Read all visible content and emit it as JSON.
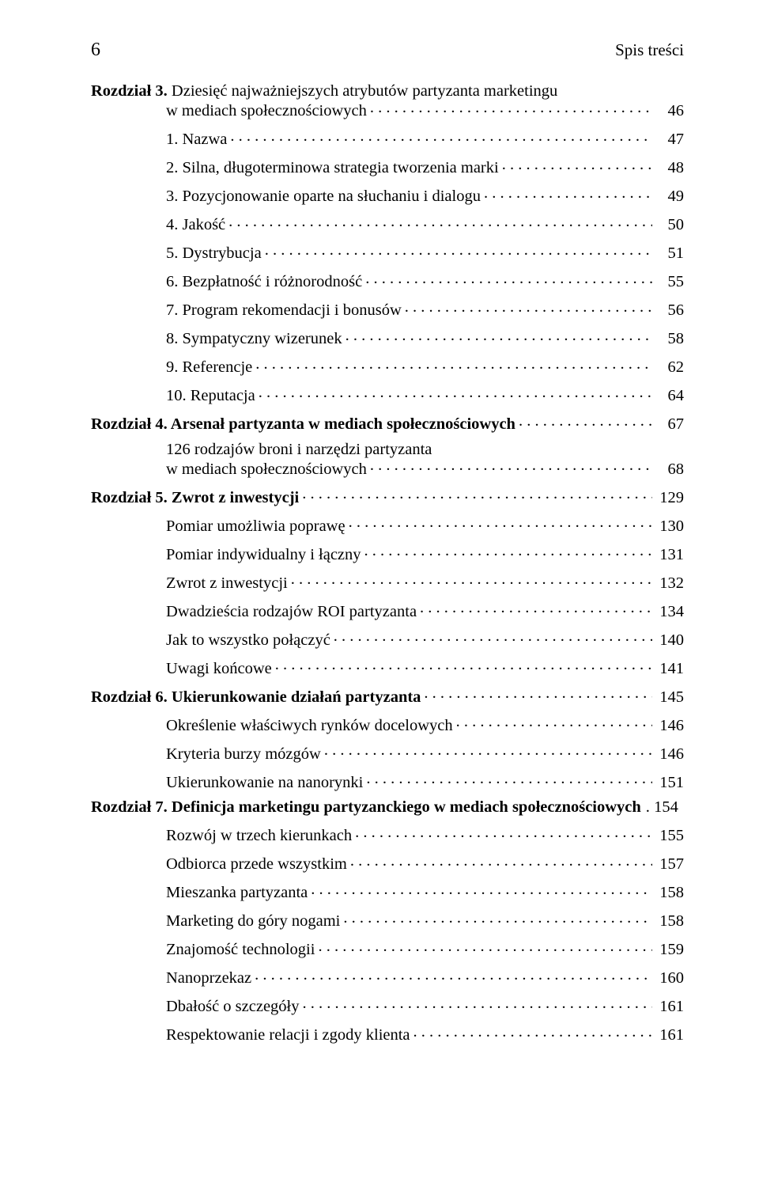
{
  "header": {
    "page_number": "6",
    "section_title": "Spis treści"
  },
  "toc": [
    {
      "level": 0,
      "bold_prefix": "Rozdział 3.",
      "text": " Dziesięć najważniejszych atrybutów partyzanta marketingu",
      "wrap": true,
      "wrap_text": "w mediach społecznościowych",
      "wrap_indent": 1,
      "page": "46",
      "extra_space": false
    },
    {
      "level": 2,
      "text": "1. Nazwa",
      "page": "47",
      "extra_space": true
    },
    {
      "level": 2,
      "text": "2. Silna, długoterminowa strategia tworzenia marki",
      "page": "48"
    },
    {
      "level": 2,
      "text": "3. Pozycjonowanie oparte na słuchaniu i dialogu",
      "page": "49"
    },
    {
      "level": 2,
      "text": "4. Jakość",
      "page": "50"
    },
    {
      "level": 2,
      "text": "5. Dystrybucja",
      "page": "51"
    },
    {
      "level": 2,
      "text": "6. Bezpłatność i różnorodność",
      "page": "55"
    },
    {
      "level": 2,
      "text": "7. Program rekomendacji i bonusów",
      "page": "56"
    },
    {
      "level": 2,
      "text": "8. Sympatyczny wizerunek",
      "page": "58"
    },
    {
      "level": 2,
      "text": "9. Referencje",
      "page": "62"
    },
    {
      "level": 2,
      "text": "10. Reputacja",
      "page": "64"
    },
    {
      "level": 0,
      "bold_prefix": "Rozdział 4.",
      "bold_rest": " Arsenał partyzanta w mediach społecznościowych",
      "page": "67",
      "extra_space": true
    },
    {
      "level": 2,
      "text": "126 rodzajów broni i narzędzi partyzanta",
      "wrap": true,
      "wrap_text": "w mediach społecznościowych",
      "wrap_indent": 2,
      "page": "68",
      "extra_space": true
    },
    {
      "level": 0,
      "bold_prefix": "Rozdział 5.",
      "bold_rest": " Zwrot z inwestycji",
      "page": "129",
      "extra_space": true
    },
    {
      "level": 2,
      "text": "Pomiar umożliwia poprawę",
      "page": "130",
      "extra_space": true
    },
    {
      "level": 2,
      "text": "Pomiar indywidualny i łączny",
      "page": "131"
    },
    {
      "level": 2,
      "text": "Zwrot z inwestycji",
      "page": "132"
    },
    {
      "level": 2,
      "text": "Dwadzieścia rodzajów ROI partyzanta",
      "page": "134"
    },
    {
      "level": 2,
      "text": "Jak to wszystko połączyć",
      "page": "140"
    },
    {
      "level": 2,
      "text": "Uwagi końcowe",
      "page": "141"
    },
    {
      "level": 0,
      "bold_prefix": "Rozdział 6.",
      "bold_rest": " Ukierunkowanie działań partyzanta",
      "page": "145",
      "extra_space": true
    },
    {
      "level": 2,
      "text": "Określenie właściwych rynków docelowych",
      "page": "146",
      "extra_space": true
    },
    {
      "level": 2,
      "text": "Kryteria burzy mózgów",
      "page": "146"
    },
    {
      "level": 2,
      "text": "Ukierunkowanie na nanorynki",
      "page": "151"
    },
    {
      "level": 0,
      "bold_prefix": "Rozdział 7.",
      "bold_rest": " Definicja marketingu partyzanckiego w mediach społecznościowych",
      "page": "154",
      "no_leader": true,
      "extra_space": true
    },
    {
      "level": 2,
      "text": "Rozwój w trzech kierunkach",
      "page": "155",
      "extra_space": true
    },
    {
      "level": 2,
      "text": "Odbiorca przede wszystkim",
      "page": "157"
    },
    {
      "level": 2,
      "text": "Mieszanka partyzanta",
      "page": "158"
    },
    {
      "level": 2,
      "text": "Marketing do góry nogami",
      "page": "158"
    },
    {
      "level": 2,
      "text": "Znajomość technologii",
      "page": "159"
    },
    {
      "level": 2,
      "text": "Nanoprzekaz",
      "page": "160"
    },
    {
      "level": 2,
      "text": "Dbałość o szczegóły",
      "page": "161"
    },
    {
      "level": 2,
      "text": "Respektowanie relacji i zgody klienta",
      "page": "161"
    }
  ]
}
